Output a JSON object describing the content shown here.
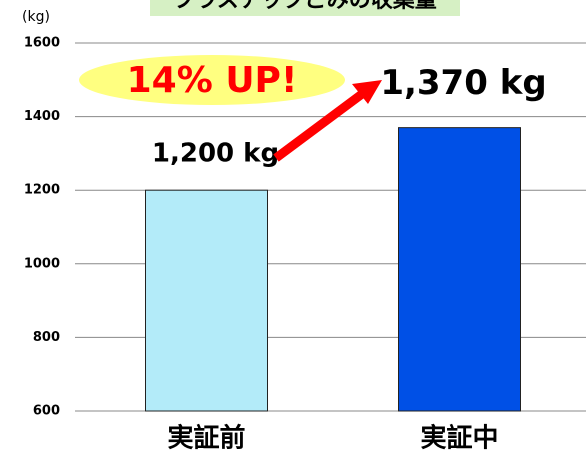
{
  "chart_data": {
    "type": "bar",
    "title": "プラスチックごみの収集量",
    "ylabel": "(kg)",
    "categories": [
      "実証前",
      "実証中"
    ],
    "values": [
      1200,
      1370
    ],
    "value_labels": [
      "1,200 kg",
      "1,370 kg"
    ],
    "colors": [
      "#b3ebf9",
      "#0050e6"
    ],
    "ylim": [
      600,
      1600
    ],
    "yticks": [
      600,
      800,
      1000,
      1200,
      1400,
      1600
    ],
    "grid": true,
    "annotation": "14% UP!"
  }
}
